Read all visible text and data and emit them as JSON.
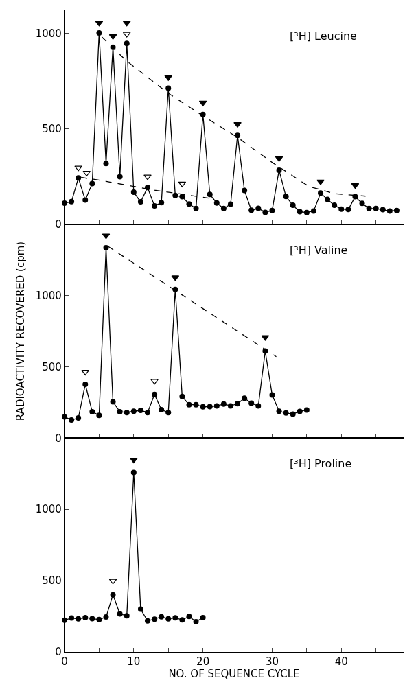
{
  "chart_data": [
    {
      "type": "line",
      "annotations": [
        "[³H] Leucine"
      ],
      "xlim": [
        0,
        49
      ],
      "xticks": [
        0,
        {
          "value": 5,
          "label": null
        },
        10,
        {
          "value": 15,
          "label": null
        },
        20,
        {
          "value": 25,
          "label": null
        },
        30,
        {
          "value": 35,
          "label": null
        },
        40,
        {
          "value": 45,
          "label": null
        }
      ],
      "ylim": [
        0,
        1120
      ],
      "yticks": [
        0,
        500,
        1000
      ],
      "tick_labels": "y",
      "grid": false,
      "series": [
        {
          "color": "#000000",
          "marker": "circle",
          "line_style": "solid",
          "x": [
            0,
            1,
            2,
            3,
            4,
            5,
            6,
            7,
            8,
            9,
            10,
            11,
            12,
            13,
            14,
            15,
            16,
            17,
            18,
            19,
            20,
            21,
            22,
            23,
            24,
            25,
            26,
            27,
            28,
            29,
            30,
            31,
            32,
            33,
            34,
            35,
            36,
            37,
            38,
            39,
            40,
            41,
            42,
            43,
            44,
            45,
            46,
            47,
            48
          ],
          "values": [
            110,
            118,
            242,
            126,
            213,
            1001,
            318,
            927,
            249,
            947,
            168,
            117,
            192,
            96,
            113,
            712,
            151,
            144,
            106,
            82,
            575,
            156,
            111,
            82,
            105,
            465,
            177,
            73,
            83,
            62,
            72,
            283,
            145,
            99,
            65,
            61,
            69,
            163,
            130,
            99,
            79,
            77,
            144,
            109,
            82,
            82,
            76,
            69,
            72
          ]
        },
        {
          "type": "line",
          "color": "#000000",
          "marker": "none",
          "line_style": "dashed",
          "x": [
            5.4,
            8.9,
            14.9,
            20.1,
            24.9,
            30.1,
            35.3,
            39,
            43.5
          ],
          "values": [
            980,
            857,
            688,
            565,
            457,
            321,
            198,
            160,
            147
          ]
        },
        {
          "type": "line",
          "color": "#000000",
          "marker": "none",
          "line_style": "dashed",
          "x": [
            2.4,
            4.8,
            13,
            20.8
          ],
          "values": [
            245,
            232,
            178,
            137
          ]
        },
        {
          "type": "scatter",
          "color": "#000000",
          "marker": "triangle",
          "x": [
            5,
            7,
            9,
            15,
            20,
            25,
            31,
            37,
            42
          ],
          "values": [
            1054,
            984,
            1054,
            769,
            636,
            524,
            345,
            223,
            204
          ]
        },
        {
          "type": "scatter",
          "color": "#ffffff",
          "marker": "triangle",
          "x": [
            2,
            3.2,
            9,
            12,
            17
          ],
          "values": [
            296,
            269,
            996,
            249,
            212
          ]
        }
      ]
    },
    {
      "type": "line",
      "annotations": [
        "[³H] Valine"
      ],
      "ylabel": "RADIOACTIVITY RECOVERED (cpm)",
      "xlim": [
        0,
        49
      ],
      "xticks": [
        0,
        {
          "value": 5,
          "label": null
        },
        10,
        {
          "value": 15,
          "label": null
        },
        20,
        {
          "value": 25,
          "label": null
        },
        30,
        {
          "value": 35,
          "label": null
        },
        40,
        {
          "value": 45,
          "label": null
        }
      ],
      "ylim": [
        0,
        1500
      ],
      "yticks": [
        0,
        500,
        1000
      ],
      "tick_labels": "y",
      "grid": false,
      "series": [
        {
          "color": "#000000",
          "marker": "circle",
          "line_style": "solid",
          "x": [
            0,
            1,
            2,
            3,
            4,
            5,
            6,
            7,
            8,
            9,
            10,
            11,
            12,
            13,
            14,
            15,
            16,
            17,
            18,
            19,
            20,
            21,
            22,
            23,
            24,
            25,
            26,
            27,
            28,
            29,
            30,
            31,
            32,
            33,
            34,
            35
          ],
          "values": [
            149,
            127,
            141,
            377,
            185,
            159,
            1335,
            254,
            185,
            179,
            188,
            194,
            179,
            306,
            199,
            179,
            1042,
            292,
            234,
            234,
            219,
            221,
            225,
            239,
            226,
            241,
            279,
            245,
            225,
            610,
            303,
            188,
            176,
            168,
            187,
            197
          ]
        },
        {
          "type": "line",
          "color": "#000000",
          "marker": "none",
          "line_style": "dashed",
          "x": [
            6.3,
            30.6
          ],
          "values": [
            1344,
            571
          ]
        },
        {
          "type": "scatter",
          "color": "#000000",
          "marker": "triangle",
          "x": [
            6,
            16,
            29
          ],
          "values": [
            1420,
            1127,
            707
          ]
        },
        {
          "type": "scatter",
          "color": "#ffffff",
          "marker": "triangle",
          "x": [
            3,
            13
          ],
          "values": [
            464,
            400
          ]
        }
      ]
    },
    {
      "type": "line",
      "annotations": [
        "[³H] Proline"
      ],
      "xlabel": "NO. OF SEQUENCE CYCLE",
      "xlim": [
        0,
        49
      ],
      "xticks": [
        0,
        {
          "value": 5,
          "label": null
        },
        10,
        {
          "value": 15,
          "label": null
        },
        20,
        {
          "value": 25,
          "label": null
        },
        30,
        {
          "value": 35,
          "label": null
        },
        40,
        {
          "value": 45,
          "label": null
        }
      ],
      "ylim": [
        0,
        1500
      ],
      "yticks": [
        0,
        500,
        1000
      ],
      "grid": false,
      "series": [
        {
          "color": "#000000",
          "marker": "circle",
          "line_style": "solid",
          "x": [
            0,
            1,
            2,
            3,
            4,
            5,
            6,
            7,
            8,
            9,
            10,
            11,
            12,
            13,
            14,
            15,
            16,
            17,
            18,
            19,
            20
          ],
          "values": [
            223,
            238,
            232,
            241,
            234,
            227,
            245,
            401,
            267,
            254,
            1258,
            301,
            218,
            230,
            247,
            232,
            240,
            225,
            249,
            212,
            241
          ]
        },
        {
          "type": "scatter",
          "color": "#000000",
          "marker": "triangle",
          "x": [
            10
          ],
          "values": [
            1348
          ]
        },
        {
          "type": "scatter",
          "color": "#ffffff",
          "marker": "triangle",
          "x": [
            7
          ],
          "values": [
            499
          ]
        }
      ]
    }
  ]
}
